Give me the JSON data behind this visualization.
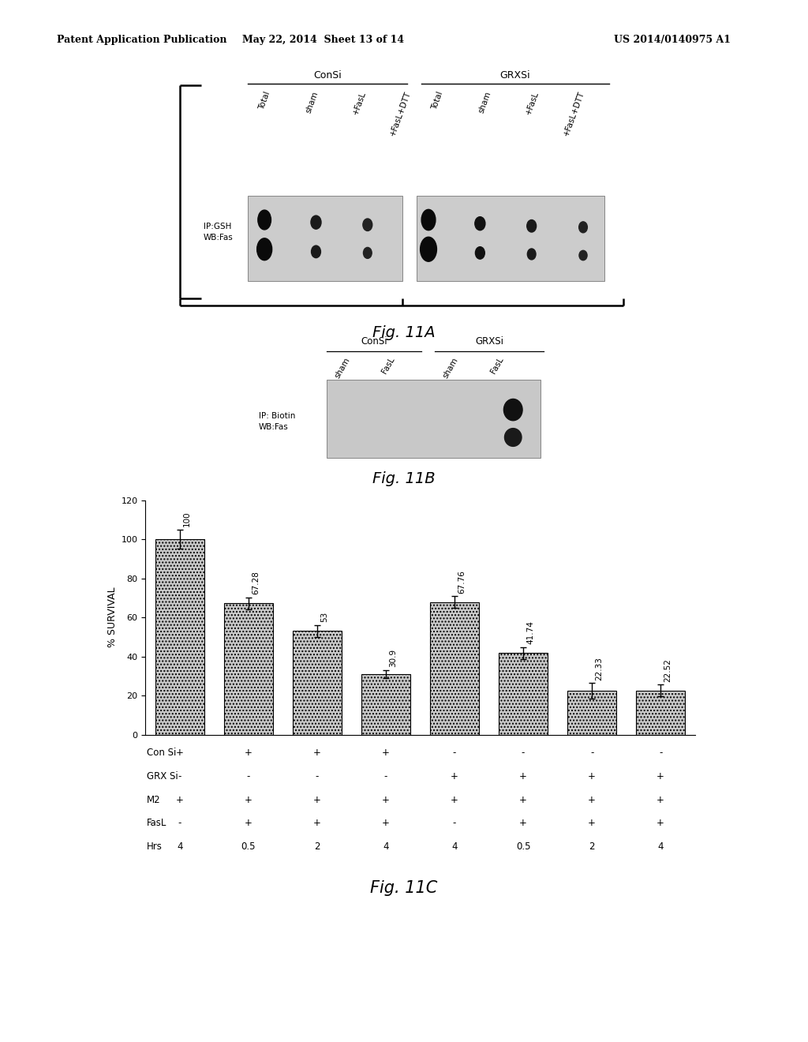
{
  "header_left": "Patent Application Publication",
  "header_mid": "May 22, 2014  Sheet 13 of 14",
  "header_right": "US 2014/0140975 A1",
  "fig11a_title": "Fig. 11A",
  "fig11a_consi_label": "ConSi",
  "fig11a_grxsi_label": "GRXSi",
  "fig11a_consi_cols": [
    "Total",
    "sham",
    "+FasL",
    "+FasL+DTT"
  ],
  "fig11a_grxsi_cols": [
    "Total",
    "sham",
    "+FasL",
    "+FasL+DTT"
  ],
  "fig11a_row_label": "IP:GSH\nWB:Fas",
  "fig11b_title": "Fig. 11B",
  "fig11b_consi_label": "ConSi",
  "fig11b_grxsi_label": "GRXSi",
  "fig11b_col_labels": [
    "sham",
    "FasL",
    "sham",
    "FasL"
  ],
  "fig11b_row_label": "IP: Biotin\nWB:Fas",
  "fig11c_title": "Fig. 11C",
  "bar_values": [
    100,
    67.28,
    53,
    30.9,
    67.76,
    41.74,
    22.33,
    22.52
  ],
  "bar_labels": [
    "100",
    "67.28",
    "53",
    "30.9",
    "67.76",
    "41.74",
    "22.33",
    "22.52"
  ],
  "bar_errors": [
    5,
    3,
    3,
    2,
    3,
    3,
    4,
    3
  ],
  "ylabel": "% SURVIVAL",
  "ylim": [
    0,
    120
  ],
  "yticks": [
    0,
    20,
    40,
    60,
    80,
    100,
    120
  ],
  "table_rows": [
    "Con Si",
    "GRX Si",
    "M2",
    "FasL",
    "Hrs"
  ],
  "table_data": [
    [
      "+",
      "+",
      "+",
      "+",
      "-",
      "-",
      "-",
      "-"
    ],
    [
      "-",
      "-",
      "-",
      "-",
      "+",
      "+",
      "+",
      "+"
    ],
    [
      "+",
      "+",
      "+",
      "+",
      "+",
      "+",
      "+",
      "+"
    ],
    [
      "-",
      "+",
      "+",
      "+",
      "-",
      "+",
      "+",
      "+"
    ],
    [
      "4",
      "0.5",
      "2",
      "4",
      "4",
      "0.5",
      "2",
      "4"
    ]
  ],
  "background_color": "#ffffff"
}
